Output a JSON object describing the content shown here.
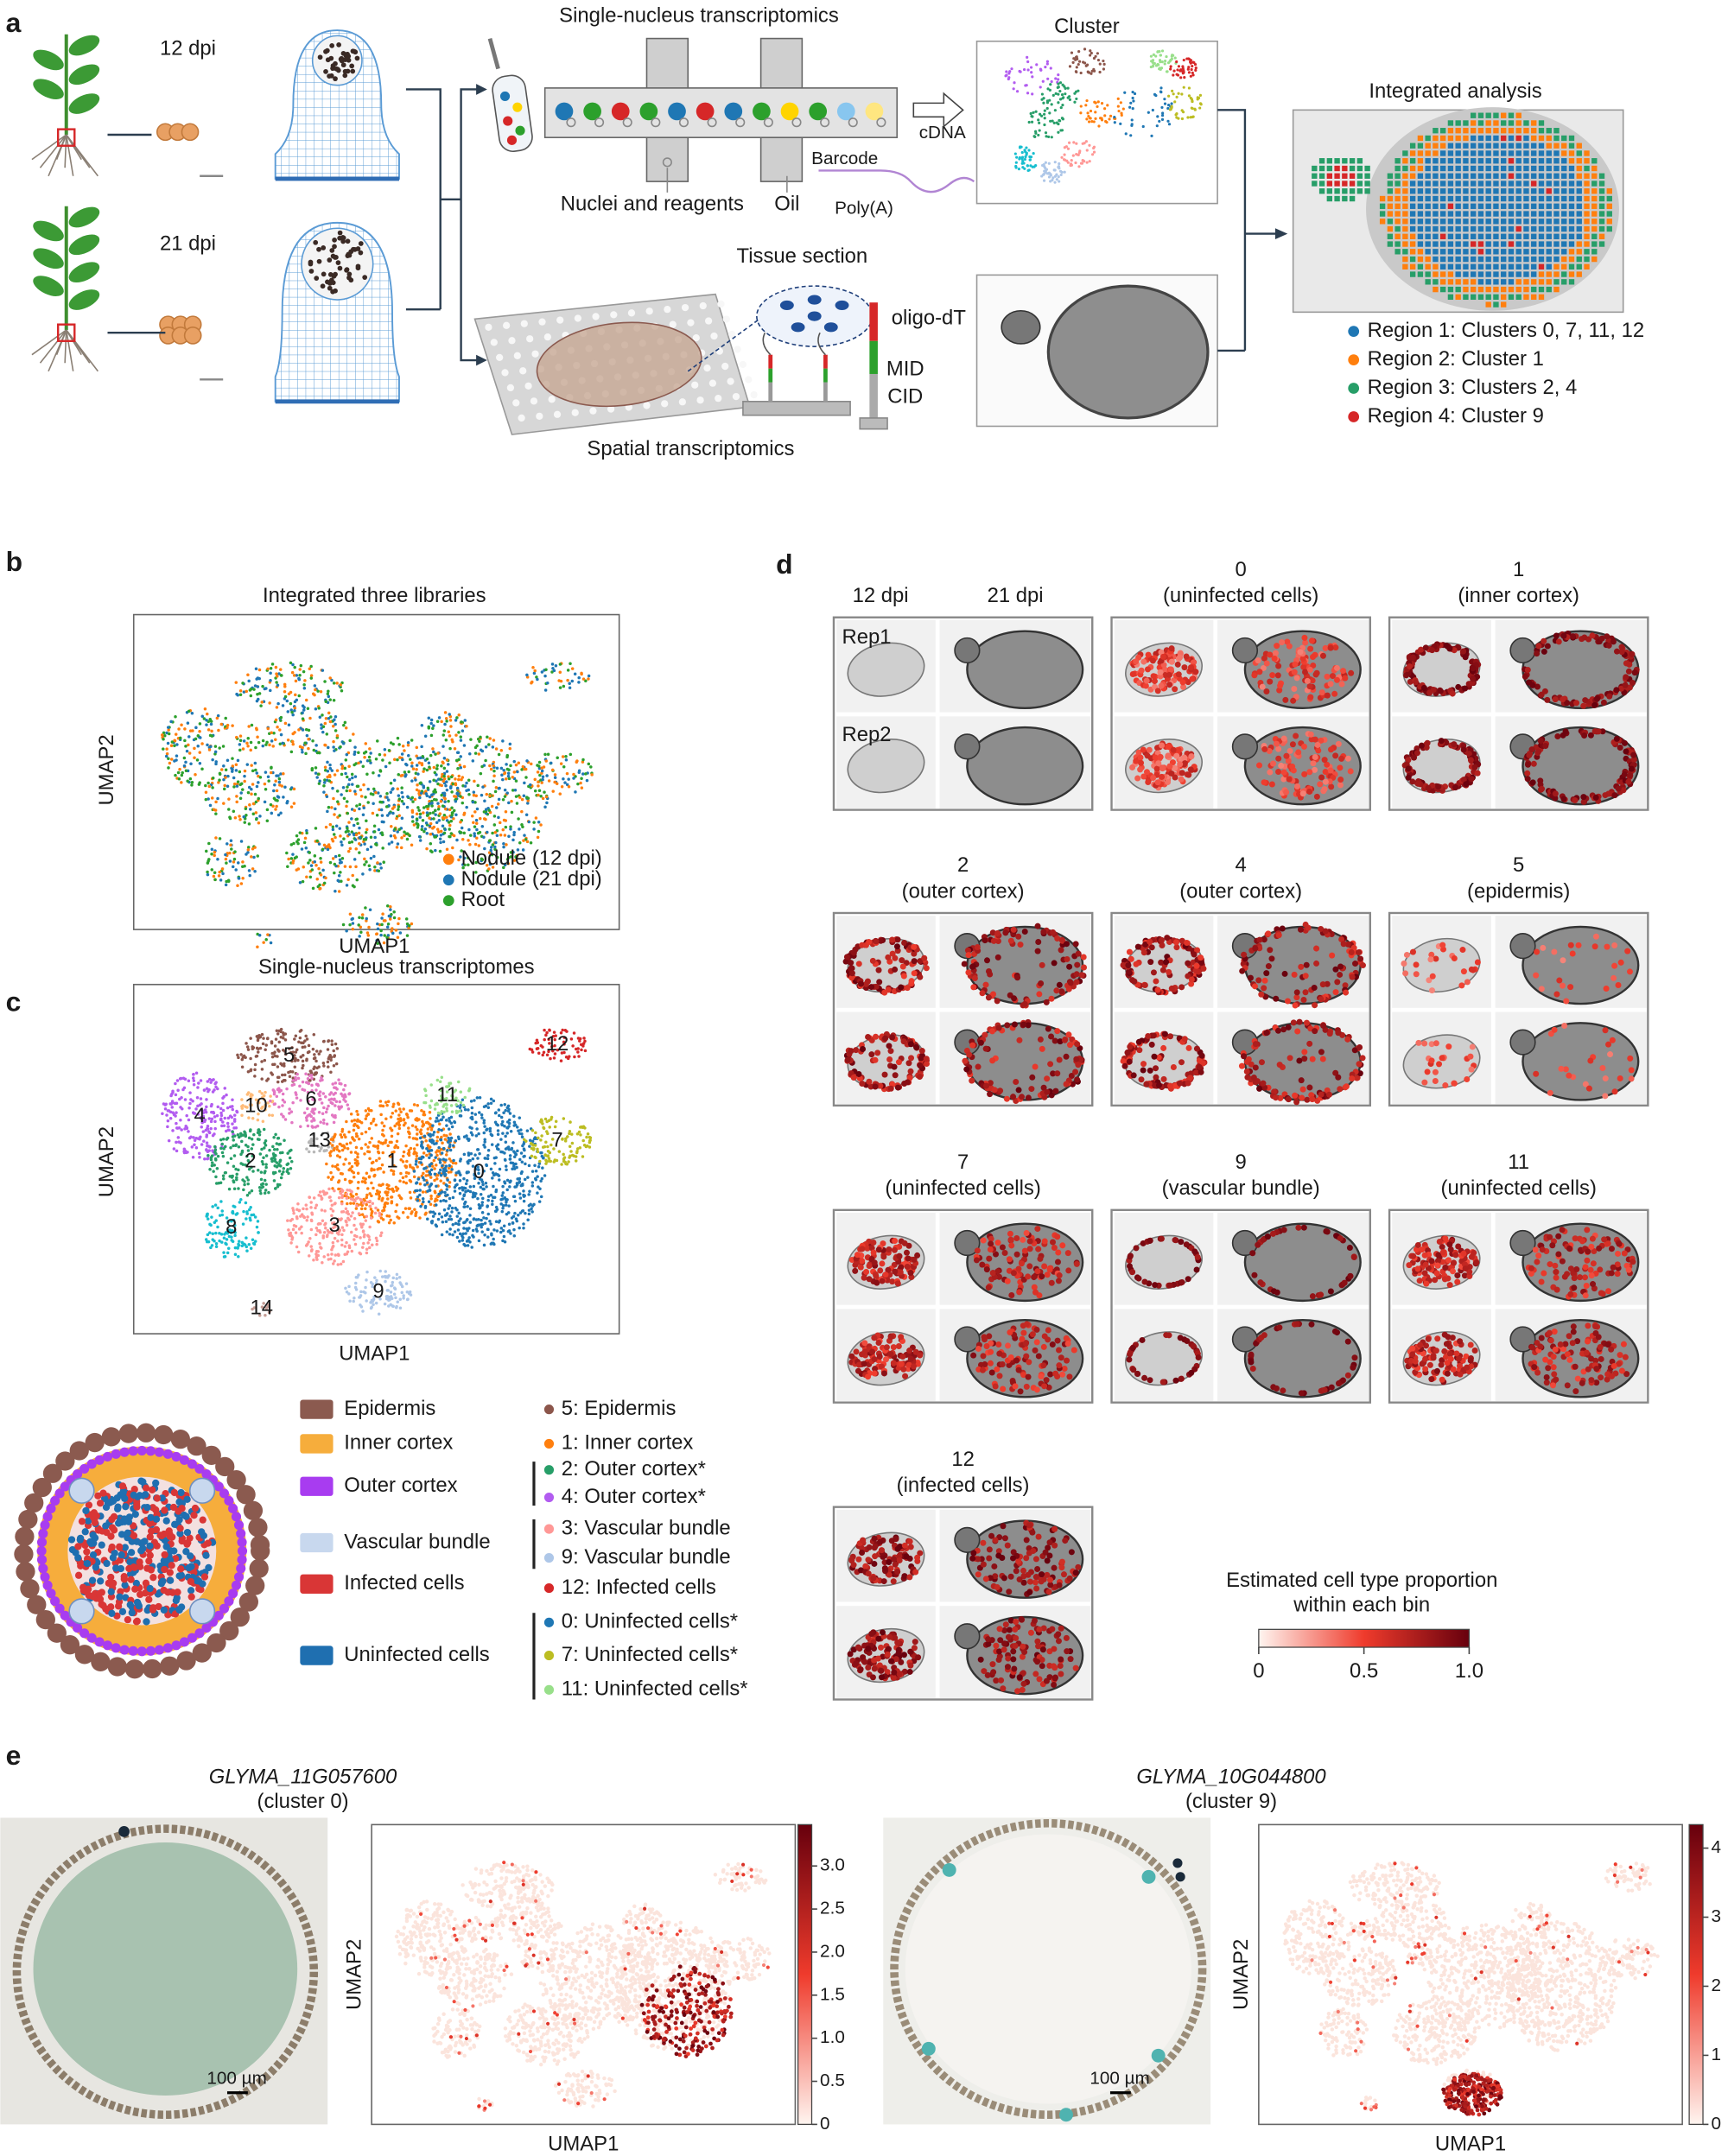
{
  "panel_a": {
    "letter": "a",
    "dpi_12": "12 dpi",
    "dpi_21": "21 dpi",
    "snrna_title": "Single-nucleus transcriptomics",
    "nuclei_label": "Nuclei and reagents",
    "oil_label": "Oil",
    "barcode_label": "Barcode",
    "cdna_label": "cDNA",
    "polya_label": "Poly(A)",
    "cluster_title": "Cluster",
    "tissue_label": "Tissue section",
    "oligo_label": "oligo-dT",
    "mid_label": "MID",
    "cid_label": "CID",
    "spatial_title": "Spatial transcriptomics",
    "integrated_title": "Integrated analysis",
    "regions": [
      {
        "label": "Region 1: Clusters 0, 7, 11, 12",
        "color": "#1f77b4"
      },
      {
        "label": "Region 2: Cluster 1",
        "color": "#ff7f0e"
      },
      {
        "label": "Region 3: Clusters 2, 4",
        "color": "#279e68"
      },
      {
        "label": "Region 4: Cluster 9",
        "color": "#d62728"
      }
    ]
  },
  "panel_b": {
    "letter": "b",
    "title": "Integrated three libraries",
    "x_label": "UMAP1",
    "y_label": "UMAP2",
    "legend": [
      {
        "label": "Nodule (12 dpi)",
        "color": "#ff7f0e"
      },
      {
        "label": "Nodule (21 dpi)",
        "color": "#1f77b4"
      },
      {
        "label": "Root",
        "color": "#2ca02c"
      }
    ]
  },
  "panel_c": {
    "letter": "c",
    "title": "Single-nucleus transcriptomes",
    "x_label": "UMAP1",
    "y_label": "UMAP2",
    "clusters": [
      {
        "label": "5",
        "color": "#8c564b"
      },
      {
        "label": "10",
        "color": "#ffbb78"
      },
      {
        "label": "6",
        "color": "#e377c2"
      },
      {
        "label": "4",
        "color": "#b25cf0"
      },
      {
        "label": "13",
        "color": "#b8b8b8"
      },
      {
        "label": "2",
        "color": "#279e68"
      },
      {
        "label": "1",
        "color": "#ff7f0e"
      },
      {
        "label": "0",
        "color": "#1f77b4"
      },
      {
        "label": "11",
        "color": "#98df8a"
      },
      {
        "label": "12",
        "color": "#d62728"
      },
      {
        "label": "7",
        "color": "#bcbd22"
      },
      {
        "label": "8",
        "color": "#17becf"
      },
      {
        "label": "3",
        "color": "#ff9896"
      },
      {
        "label": "9",
        "color": "#aec7e8"
      },
      {
        "label": "14",
        "color": "#c49c94"
      }
    ],
    "tissue_legend": [
      {
        "label": "Epidermis",
        "color": "#8b5a4f"
      },
      {
        "label": "Inner cortex",
        "color": "#f6ad3c"
      },
      {
        "label": "Outer cortex",
        "color": "#a83cf0"
      },
      {
        "label": "Vascular bundle",
        "color": "#c8d8ee"
      },
      {
        "label": "Infected cells",
        "color": "#d93636"
      },
      {
        "label": "Uninfected cells",
        "color": "#1f6fb0"
      }
    ],
    "cluster_legend": [
      {
        "label": "5: Epidermis",
        "color": "#8c564b"
      },
      {
        "label": "1: Inner cortex",
        "color": "#ff7f0e"
      },
      {
        "label": "2: Outer cortex*",
        "color": "#279e68"
      },
      {
        "label": "4: Outer cortex*",
        "color": "#b25cf0"
      },
      {
        "label": "3: Vascular bundle",
        "color": "#ff9896"
      },
      {
        "label": "9: Vascular bundle",
        "color": "#aec7e8"
      },
      {
        "label": "12: Infected cells",
        "color": "#d62728"
      },
      {
        "label": "0: Uninfected cells*",
        "color": "#1f77b4"
      },
      {
        "label": "7: Uninfected cells*",
        "color": "#bcbd22"
      },
      {
        "label": "11: Uninfected cells*",
        "color": "#98df8a"
      }
    ]
  },
  "panel_d": {
    "letter": "d",
    "col_12": "12 dpi",
    "col_21": "21 dpi",
    "rep1": "Rep1",
    "rep2": "Rep2",
    "panels": [
      {
        "cluster": "0",
        "name": "(uninfected cells)"
      },
      {
        "cluster": "1",
        "name": "(inner cortex)"
      },
      {
        "cluster": "2",
        "name": "(outer cortex)"
      },
      {
        "cluster": "4",
        "name": "(outer cortex)"
      },
      {
        "cluster": "5",
        "name": "(epidermis)"
      },
      {
        "cluster": "7",
        "name": "(uninfected cells)"
      },
      {
        "cluster": "9",
        "name": "(vascular bundle)"
      },
      {
        "cluster": "11",
        "name": "(uninfected cells)"
      },
      {
        "cluster": "12",
        "name": "(infected cells)"
      }
    ],
    "colorbar": {
      "title_1": "Estimated cell type proportion",
      "title_2": "within each bin",
      "lim": [
        0,
        1
      ],
      "colors": [
        "#fff5f0",
        "#ef3b2c",
        "#67000d"
      ],
      "ticks": [
        0,
        0.5,
        {
          "value": 1,
          "label": "1.0"
        }
      ]
    }
  },
  "panel_e": {
    "letter": "e",
    "genes": [
      {
        "gene": "GLYMA_11G057600",
        "cluster": "(cluster 0)",
        "scale_bar": "100 µm",
        "x_label": "UMAP1",
        "y_label": "UMAP2",
        "lim": [
          0,
          3.48
        ],
        "ticks": [
          0,
          0.5,
          {
            "value": 1,
            "label": "1.0"
          },
          1.5,
          {
            "value": 2,
            "label": "2.0"
          },
          2.5,
          {
            "value": 3,
            "label": "3.0"
          }
        ]
      },
      {
        "gene": "GLYMA_10G044800",
        "cluster": "(cluster 9)",
        "scale_bar": "100 µm",
        "x_label": "UMAP1",
        "y_label": "UMAP2",
        "lim": [
          0,
          4.34
        ],
        "ticks": [
          0,
          1,
          2,
          3,
          4
        ]
      }
    ]
  }
}
